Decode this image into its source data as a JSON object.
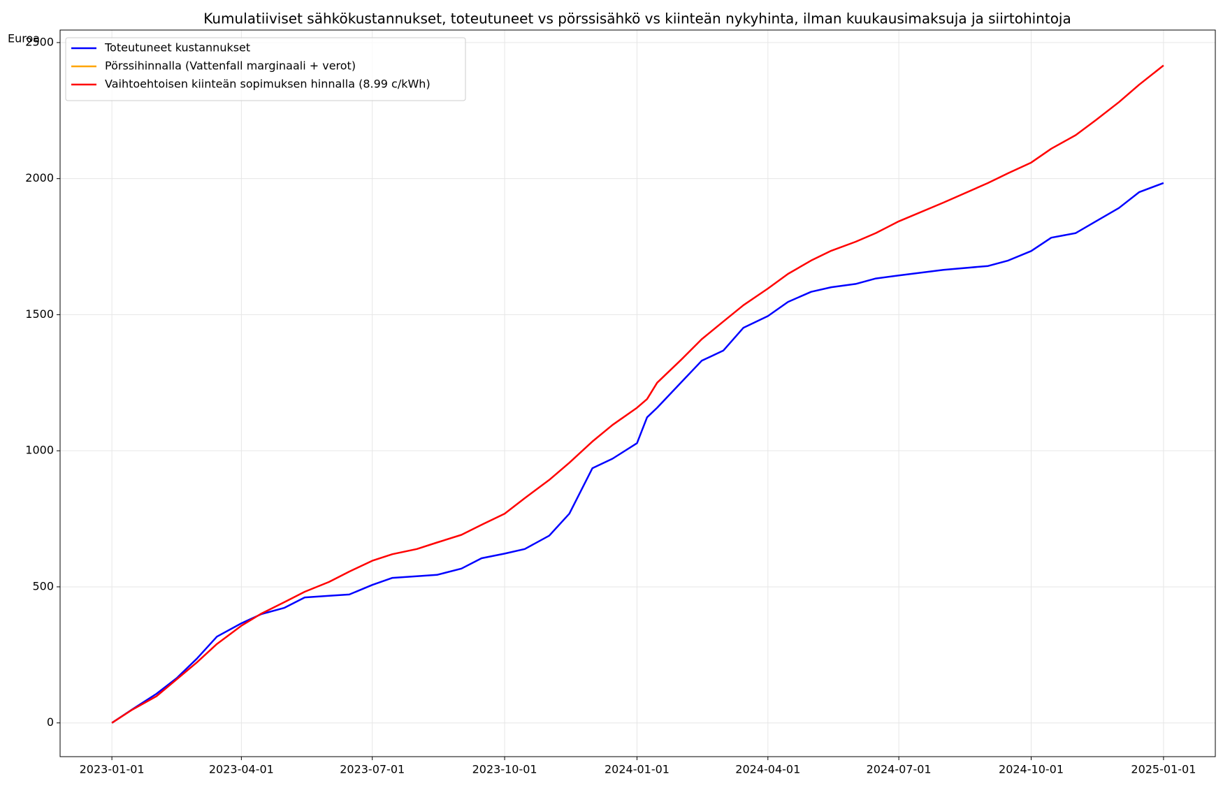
{
  "chart_data": {
    "type": "line",
    "title": "Kumulatiiviset sähkökustannukset, toteutuneet vs pörssisähkö vs kiinteän nykyhinta, ilman kuukausimaksuja ja siirtohintoja",
    "y_label": "Euroa",
    "x": [
      "2023-01-01",
      "2023-01-15",
      "2023-02-01",
      "2023-02-15",
      "2023-03-01",
      "2023-03-15",
      "2023-04-01",
      "2023-04-15",
      "2023-05-01",
      "2023-05-15",
      "2023-06-01",
      "2023-06-15",
      "2023-07-01",
      "2023-07-15",
      "2023-08-01",
      "2023-08-15",
      "2023-09-01",
      "2023-09-15",
      "2023-10-01",
      "2023-10-15",
      "2023-11-01",
      "2023-11-15",
      "2023-12-01",
      "2023-12-15",
      "2024-01-01",
      "2024-01-08",
      "2024-01-15",
      "2024-02-01",
      "2024-02-15",
      "2024-03-01",
      "2024-03-15",
      "2024-04-01",
      "2024-04-15",
      "2024-05-01",
      "2024-05-15",
      "2024-06-01",
      "2024-06-15",
      "2024-07-01",
      "2024-08-01",
      "2024-09-01",
      "2024-09-15",
      "2024-10-01",
      "2024-10-15",
      "2024-11-01",
      "2024-11-15",
      "2024-12-01",
      "2024-12-15",
      "2025-01-01"
    ],
    "series": [
      {
        "name": "Toteutuneet kustannukset",
        "color": "#0000ff",
        "values": [
          0,
          49,
          107,
          164,
          236,
          317,
          366,
          400,
          423,
          461,
          467,
          472,
          507,
          533,
          539,
          544,
          567,
          605,
          622,
          639,
          688,
          769,
          936,
          971,
          1028,
          1123,
          1158,
          1253,
          1331,
          1368,
          1452,
          1495,
          1547,
          1584,
          1601,
          1613,
          1633,
          1644,
          1665,
          1679,
          1699,
          1734,
          1783,
          1800,
          1843,
          1892,
          1950,
          1984
        ]
      },
      {
        "name": "Pörssihinnalla (Vattenfall marginaali + verot)",
        "color": "#ffa500",
        "values": [
          null,
          null,
          null,
          null,
          null,
          null,
          null,
          null,
          null,
          null,
          null,
          null,
          null,
          null,
          null,
          null,
          null,
          null,
          null,
          null,
          null,
          null,
          null,
          null,
          null,
          null,
          null,
          null,
          null,
          null,
          null,
          null,
          null,
          null,
          null,
          null,
          null,
          null,
          null,
          null,
          null,
          null,
          null,
          null,
          null,
          null,
          null,
          null
        ]
      },
      {
        "name": "Vaihtoehtoisen kiinteän sopimuksen hinnalla (8.99 c/kWh)",
        "color": "#ff0000",
        "values": [
          0,
          48,
          98,
          160,
          222,
          290,
          357,
          402,
          444,
          482,
          518,
          556,
          596,
          620,
          639,
          663,
          691,
          728,
          769,
          826,
          893,
          956,
          1034,
          1095,
          1158,
          1190,
          1250,
          1336,
          1410,
          1475,
          1535,
          1596,
          1650,
          1699,
          1735,
          1768,
          1800,
          1843,
          1912,
          1984,
          2020,
          2059,
          2110,
          2160,
          2215,
          2281,
          2345,
          2416
        ]
      }
    ],
    "xlim": [
      "2022-11-26",
      "2025-02-06"
    ],
    "xticks": [
      "2023-01-01",
      "2023-04-01",
      "2023-07-01",
      "2023-10-01",
      "2024-01-01",
      "2024-04-01",
      "2024-07-01",
      "2024-10-01",
      "2025-01-01"
    ],
    "ylim": [
      -124,
      2546
    ],
    "yticks": [
      0,
      500,
      1000,
      1500,
      2000,
      2500
    ],
    "grid": true,
    "legend": "upper left"
  }
}
